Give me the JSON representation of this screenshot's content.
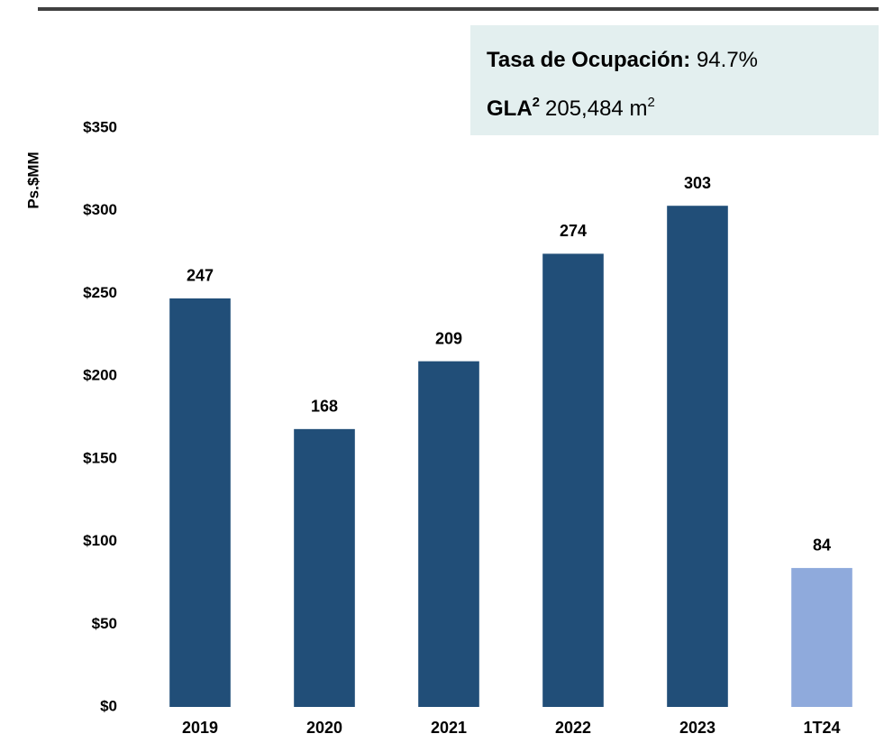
{
  "chart_data": {
    "type": "bar",
    "y_axis_label": "Ps.$MM",
    "categories": [
      "2019",
      "2020",
      "2021",
      "2022",
      "2023",
      "1T24"
    ],
    "values": [
      247,
      168,
      209,
      274,
      303,
      84
    ],
    "colors": [
      "#214e78",
      "#214e78",
      "#214e78",
      "#214e78",
      "#214e78",
      "#8faadc"
    ],
    "ylim": [
      0,
      350
    ],
    "yticks": [
      {
        "value": 0,
        "label": "$0"
      },
      {
        "value": 50,
        "label": "$50"
      },
      {
        "value": 100,
        "label": "$100"
      },
      {
        "value": 150,
        "label": "$150"
      },
      {
        "value": 200,
        "label": "$200"
      },
      {
        "value": 250,
        "label": "$250"
      },
      {
        "value": 300,
        "label": "$300"
      },
      {
        "value": 350,
        "label": "$350"
      }
    ],
    "grid": false,
    "info_box": {
      "line1_label": "Tasa de Ocupación:",
      "line1_value": "94.7%",
      "line2_label": "GLA",
      "line2_label_sup": "2",
      "line2_value": "205,484 m",
      "line2_value_sup": "2"
    }
  }
}
